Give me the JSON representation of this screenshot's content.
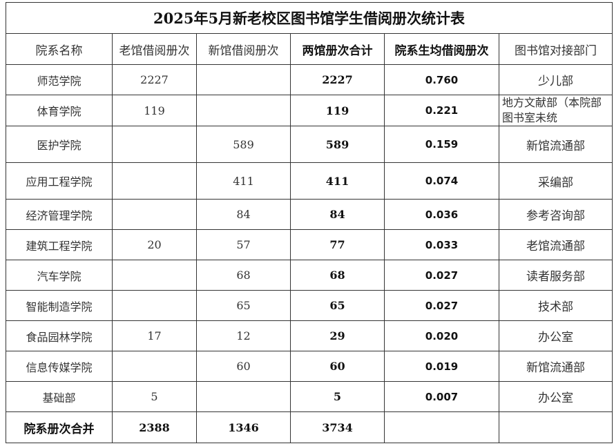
{
  "title": "2025年5月新老校区图书馆学生借阅册次统计表",
  "headers": [
    "院系名称",
    "老馆借阅册次",
    "新馆借阅册次",
    "两馆册次合计",
    "院系生均借阅册次",
    "图书馆对接部门"
  ],
  "rows": [
    {
      "name": "师范学院",
      "old": "2227",
      "new": "",
      "total": "2227",
      "avg": "0.760",
      "dept": "少儿部"
    },
    {
      "name": "体育学院",
      "old": "119",
      "new": "",
      "total": "119",
      "avg": "0.221",
      "dept": "地方文献部（本院部图书室未统"
    },
    {
      "name": "医护学院",
      "old": "",
      "new": "589",
      "total": "589",
      "avg": "0.159",
      "dept": "新馆流通部"
    },
    {
      "name": "应用工程学院",
      "old": "",
      "new": "411",
      "total": "411",
      "avg": "0.074",
      "dept": "采编部"
    },
    {
      "name": "经济管理学院",
      "old": "",
      "new": "84",
      "total": "84",
      "avg": "0.036",
      "dept": "参考咨询部"
    },
    {
      "name": "建筑工程学院",
      "old": "20",
      "new": "57",
      "total": "77",
      "avg": "0.033",
      "dept": "老馆流通部"
    },
    {
      "name": "汽车学院",
      "old": "",
      "new": "68",
      "total": "68",
      "avg": "0.027",
      "dept": "读者服务部"
    },
    {
      "name": "智能制造学院",
      "old": "",
      "new": "65",
      "total": "65",
      "avg": "0.027",
      "dept": "技术部"
    },
    {
      "name": "食品园林学院",
      "old": "17",
      "new": "12",
      "total": "29",
      "avg": "0.020",
      "dept": "办公室"
    },
    {
      "name": "信息传媒学院",
      "old": "",
      "new": "60",
      "total": "60",
      "avg": "0.019",
      "dept": "新馆流通部"
    },
    {
      "name": "基础部",
      "old": "5",
      "new": "",
      "total": "5",
      "avg": "0.007",
      "dept": "办公室"
    }
  ],
  "footer": {
    "label": "院系册次合并",
    "old": "2388",
    "new": "1346",
    "total": "3734",
    "avg": "",
    "dept": ""
  }
}
